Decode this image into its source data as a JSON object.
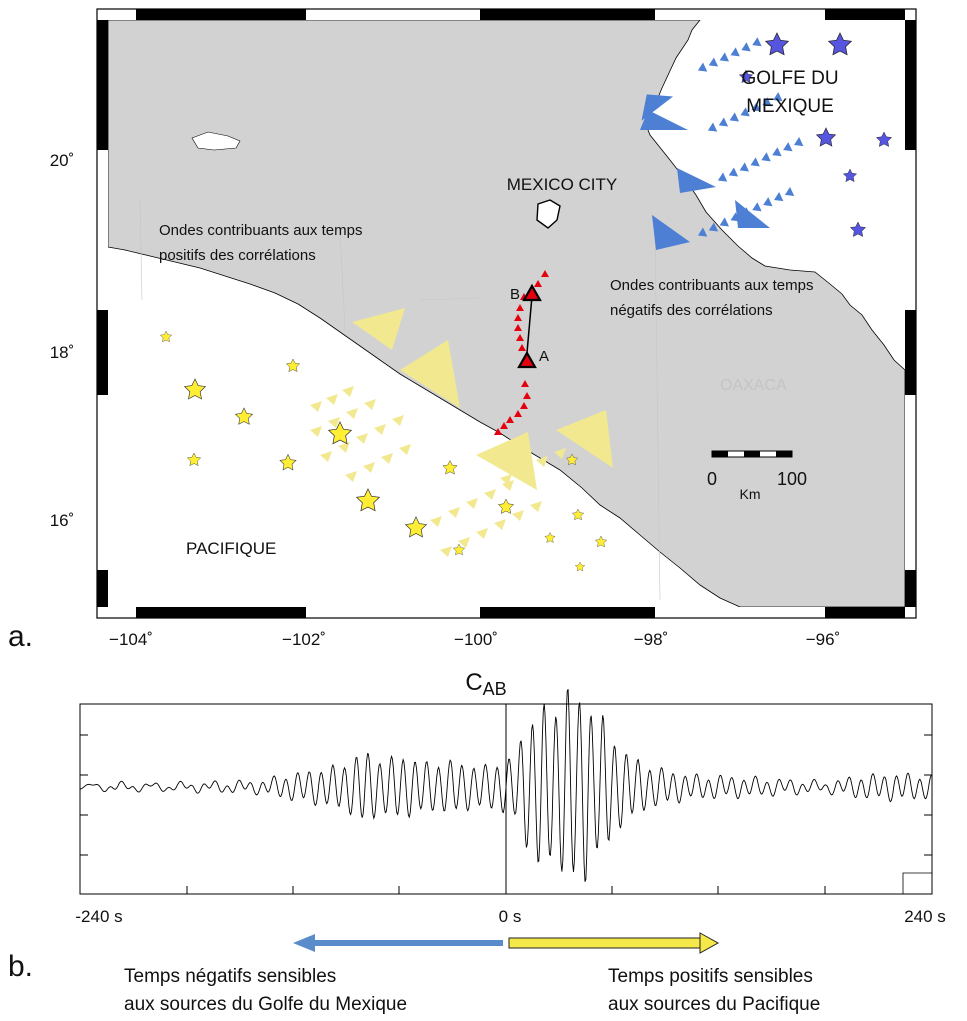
{
  "panel_a": {
    "panel_label": "a.",
    "x_ticks": [
      "−104˚",
      "−102˚",
      "−100˚",
      "−98˚",
      "−96˚"
    ],
    "y_ticks": [
      "20˚",
      "18˚",
      "16˚"
    ],
    "labels": {
      "gulf": [
        "GOLFE DU",
        "MEXIQUE"
      ],
      "mexico_city": "MEXICO CITY",
      "pacific": "PACIFIQUE",
      "oaxaca": "OAXACA",
      "positive_note": [
        "Ondes contribuants aux temps",
        "positifs des corrélations"
      ],
      "negative_note": [
        "Ondes contribuants aux temps",
        "négatifs des corrélations"
      ],
      "station_a": "A",
      "station_b": "B"
    },
    "scale_bar": {
      "start": "0",
      "end": "100",
      "unit": "Km"
    },
    "colors": {
      "land": "#d2d2d2",
      "sea": "#ffffff",
      "gulf_sources": "#4d7fd4",
      "pacific_sources": "#f2e890",
      "stations": "#e3000f",
      "pacific_stars": "#ffee33",
      "gulf_stars": "#5555e0"
    }
  },
  "panel_b": {
    "panel_label": "b.",
    "title_main": "C",
    "title_sub": "AB",
    "ticks": {
      "left": "-240 s",
      "center": "0 s",
      "right": "240 s"
    },
    "left_caption": [
      "Temps négatifs sensibles",
      "aux sources du Golfe du Mexique"
    ],
    "right_caption": [
      "Temps positifs sensibles",
      "aux sources du Pacifique"
    ],
    "arrow_colors": {
      "negative": "#5a8ccc",
      "positive": "#f5e84a"
    },
    "chart_data": {
      "type": "line",
      "title": "C_AB",
      "xlim": [
        -240,
        240
      ],
      "x_unit": "s",
      "series": [
        {
          "x": [
            -240,
            -220,
            -200,
            -180,
            -160,
            -140,
            -120,
            -100,
            -90,
            -80,
            -70,
            -60,
            -50,
            -40,
            -30,
            -20,
            -10,
            0,
            5,
            10,
            15,
            20,
            25,
            30,
            35,
            40,
            45,
            50,
            55,
            60,
            70,
            80,
            90,
            100,
            110,
            120,
            140,
            160,
            180,
            200,
            220,
            240
          ],
          "y": [
            0,
            0.03,
            0.02,
            0.03,
            0.04,
            0.05,
            0.12,
            0.18,
            0.22,
            0.35,
            0.25,
            0.3,
            0.25,
            0.22,
            0.25,
            0.2,
            0.2,
            0.25,
            0.3,
            0.55,
            0.65,
            0.85,
            0.7,
            0.75,
            1.0,
            0.8,
            0.95,
            0.6,
            0.7,
            0.45,
            0.3,
            0.2,
            0.16,
            0.12,
            0.1,
            0.1,
            0.08,
            0.06,
            0.04,
            0.1,
            0.12,
            0.1
          ]
        }
      ]
    }
  }
}
